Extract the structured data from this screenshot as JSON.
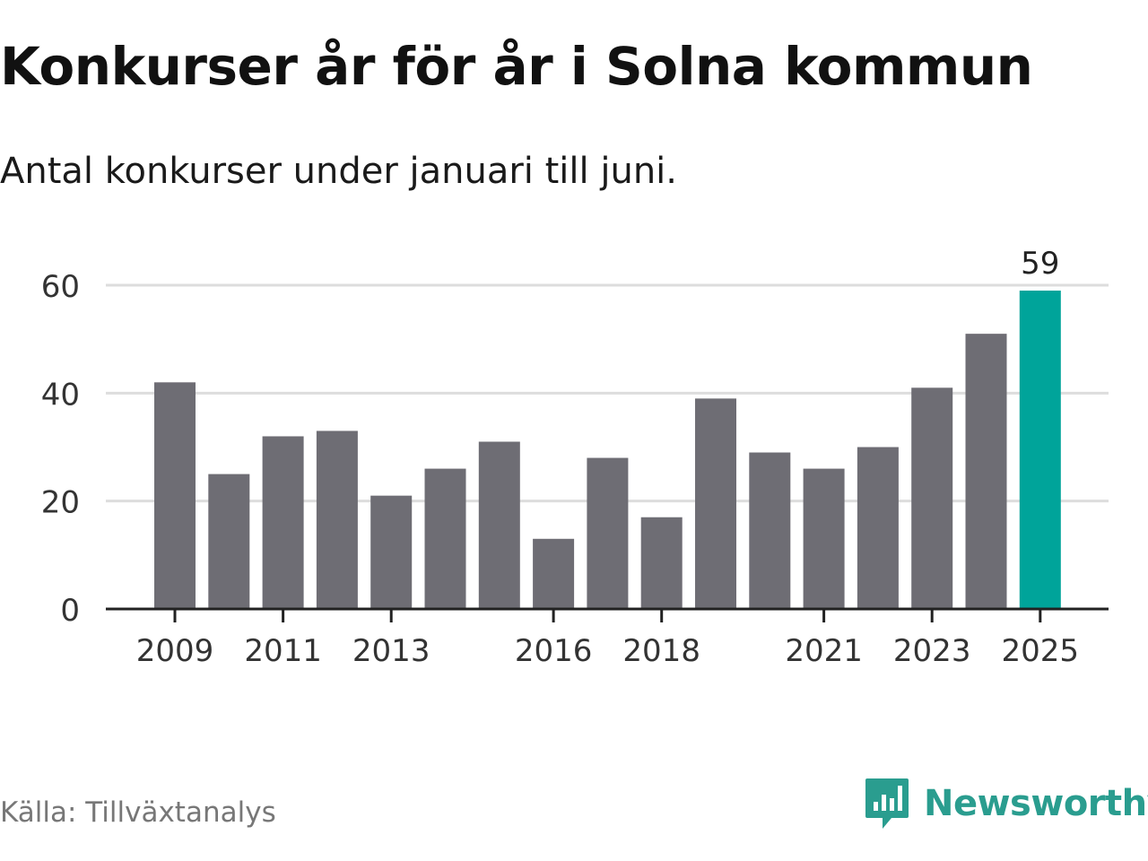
{
  "header": {
    "title": "Konkurser år för år i Solna kommun",
    "subtitle": "Antal konkurser under januari till juni."
  },
  "footer": {
    "source": "Källa: Tillväxtanalys",
    "brand": "Newsworthy"
  },
  "colors": {
    "bar": "#6e6d74",
    "highlight": "#00a49a",
    "grid": "#dddddd",
    "axis": "#222222",
    "brand": "#2a9d8f"
  },
  "icons": {
    "brand": "newsworthy-chart-bubble-icon"
  },
  "chart_data": {
    "type": "bar",
    "categories": [
      2009,
      2010,
      2011,
      2012,
      2013,
      2014,
      2015,
      2016,
      2017,
      2018,
      2019,
      2020,
      2021,
      2022,
      2023,
      2024,
      2025
    ],
    "values": [
      42,
      25,
      32,
      33,
      21,
      26,
      31,
      13,
      28,
      17,
      39,
      29,
      26,
      30,
      41,
      51,
      59
    ],
    "highlight_category": 2025,
    "data_labels": [
      {
        "category": 2025,
        "label": "59"
      }
    ],
    "x_tick_labels": [
      "2009",
      "2011",
      "2013",
      "2016",
      "2018",
      "2021",
      "2023",
      "2025"
    ],
    "y_ticks": [
      0,
      20,
      40,
      60
    ],
    "ylim": [
      0,
      60
    ],
    "grid": true,
    "legend": "none",
    "title": "Konkurser år för år i Solna kommun",
    "subtitle": "Antal konkurser under januari till juni.",
    "xlabel": "",
    "ylabel": ""
  }
}
